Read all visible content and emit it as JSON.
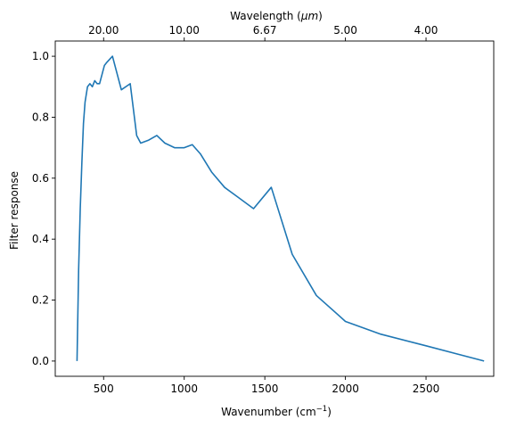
{
  "chart_data": {
    "type": "line",
    "title": "",
    "xlabel": "Wavenumber (cm",
    "xlabel_sup": "−1",
    "xlabel_suffix": ")",
    "ylabel": "Filter response",
    "top_xlabel": "Wavelength (",
    "top_xlabel_unit": "μm",
    "top_xlabel_suffix": ")",
    "xlim": [
      200,
      2920
    ],
    "ylim": [
      -0.05,
      1.05
    ],
    "xticks": [
      500,
      1000,
      1500,
      2000,
      2500
    ],
    "xtick_labels": [
      "500",
      "1000",
      "1500",
      "2000",
      "2500"
    ],
    "yticks": [
      0.0,
      0.2,
      0.4,
      0.6,
      0.8,
      1.0
    ],
    "ytick_labels": [
      "0.0",
      "0.2",
      "0.4",
      "0.6",
      "0.8",
      "1.0"
    ],
    "top_ticks": [
      {
        "label": "20.00",
        "wavenumber": 500
      },
      {
        "label": "10.00",
        "wavenumber": 1000
      },
      {
        "label": "6.67",
        "wavenumber": 1500
      },
      {
        "label": "5.00",
        "wavenumber": 2000
      },
      {
        "label": "4.00",
        "wavenumber": 2500
      }
    ],
    "grid": false,
    "line_color": "#1f77b4",
    "series": [
      {
        "x": [
          335,
          345,
          355,
          365,
          375,
          385,
          400,
          415,
          430,
          445,
          460,
          475,
          490,
          505,
          520,
          555,
          610,
          665,
          705,
          730,
          780,
          830,
          880,
          940,
          1000,
          1050,
          1100,
          1170,
          1250,
          1340,
          1430,
          1540,
          1670,
          1820,
          2000,
          2220,
          2500,
          2860
        ],
        "y": [
          0.0,
          0.3,
          0.5,
          0.65,
          0.78,
          0.85,
          0.9,
          0.91,
          0.9,
          0.92,
          0.91,
          0.91,
          0.94,
          0.97,
          0.98,
          1.0,
          0.89,
          0.91,
          0.74,
          0.715,
          0.725,
          0.74,
          0.715,
          0.7,
          0.7,
          0.71,
          0.68,
          0.62,
          0.57,
          0.535,
          0.5,
          0.57,
          0.35,
          0.215,
          0.13,
          0.088,
          0.05,
          0.0
        ]
      }
    ]
  }
}
